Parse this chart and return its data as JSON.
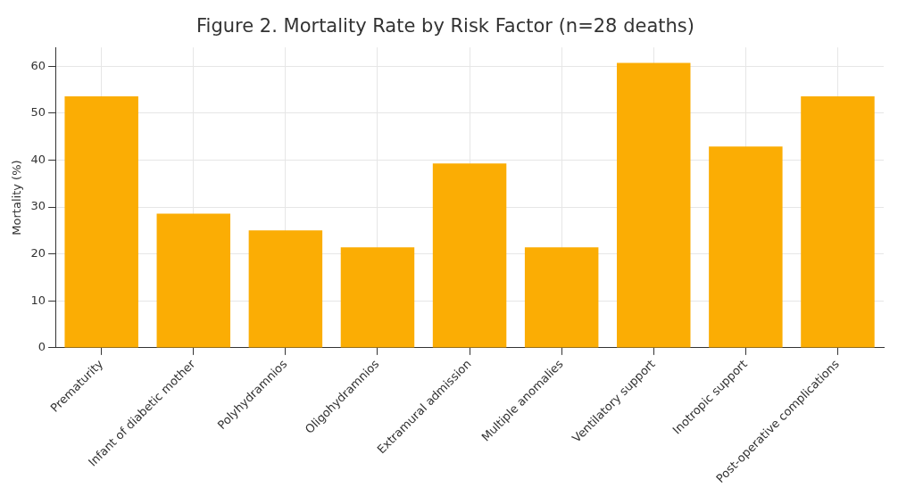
{
  "chart_data": {
    "type": "bar",
    "title": "Figure 2. Mortality Rate by Risk Factor (n=28 deaths)",
    "ylabel": "Mortality (%)",
    "categories": [
      "Prematurity",
      "Infant of diabetic mother",
      "Polyhydramnios",
      "Oligohydramnios",
      "Extramural admission",
      "Multiple anomalies",
      "Ventilatory support",
      "Inotropic support",
      "Post-operative complications"
    ],
    "values": [
      53.6,
      28.6,
      25,
      21.4,
      39.3,
      21.4,
      60.7,
      42.9,
      53.6
    ],
    "color": "#fbad04",
    "ylim": [
      0,
      64
    ],
    "yticks": [
      0,
      10,
      20,
      30,
      40,
      50,
      60
    ],
    "grid": true
  }
}
